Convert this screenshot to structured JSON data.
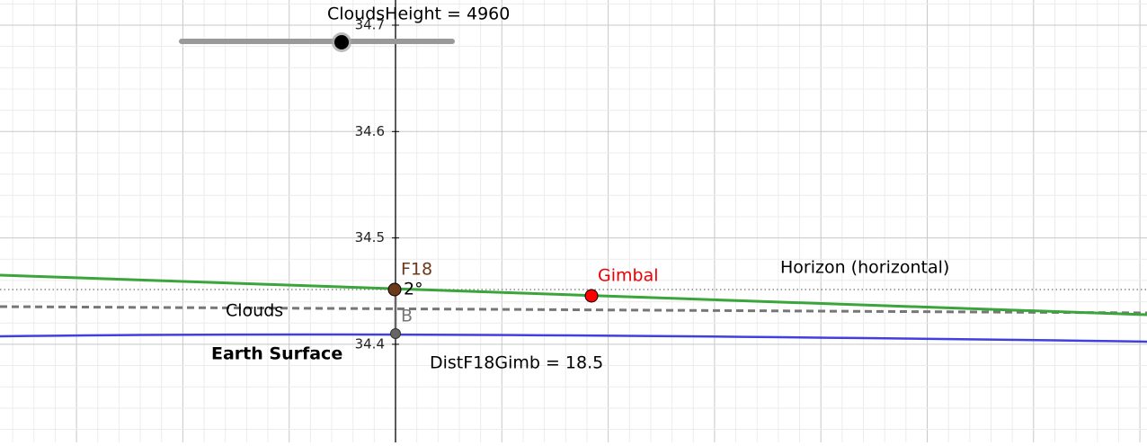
{
  "slider": {
    "label": "CloudsHeight = 4960"
  },
  "axis": {
    "ticks": [
      "34.7",
      "34.6",
      "34.5",
      "34.4"
    ]
  },
  "points": {
    "f18": "F18",
    "gimbal": "Gimbal",
    "b": "B"
  },
  "angle": "2°",
  "labels": {
    "horizon": "Horizon (horizontal)",
    "clouds": "Clouds",
    "earth": "Earth Surface",
    "distance": "DistF18Gimb = 18.5"
  }
}
